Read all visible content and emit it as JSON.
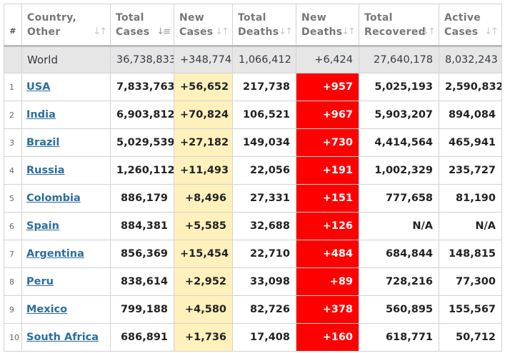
{
  "headers": {
    "index": "#",
    "country": [
      "Country,",
      "Other"
    ],
    "total_cases": [
      "Total",
      "Cases"
    ],
    "new_cases": [
      "New",
      "Cases"
    ],
    "total_deaths": [
      "Total",
      "Deaths"
    ],
    "new_deaths": [
      "New",
      "Deaths"
    ],
    "total_recovered": [
      "Total",
      "Recovered"
    ],
    "active_cases": [
      "Active",
      "Cases"
    ]
  },
  "sort_icons": {
    "country": "sort-icon",
    "total_cases": "sort-desc-icon",
    "other": "sort-icon"
  },
  "colors": {
    "new_cases_bg": "#fff1bc",
    "new_deaths_bg": "#ff0000",
    "link": "#2b6e9e",
    "world_row_bg": "#e6e6e6"
  },
  "world": {
    "country": "World",
    "total_cases": "36,738,833",
    "new_cases": "+348,774",
    "total_deaths": "1,066,412",
    "new_deaths": "+6,424",
    "total_recovered": "27,640,178",
    "active_cases": "8,032,243"
  },
  "rows": [
    {
      "idx": "1",
      "country": "USA",
      "total_cases": "7,833,763",
      "new_cases": "+56,652",
      "total_deaths": "217,738",
      "new_deaths": "+957",
      "total_recovered": "5,025,193",
      "active_cases": "2,590,832"
    },
    {
      "idx": "2",
      "country": "India",
      "total_cases": "6,903,812",
      "new_cases": "+70,824",
      "total_deaths": "106,521",
      "new_deaths": "+967",
      "total_recovered": "5,903,207",
      "active_cases": "894,084"
    },
    {
      "idx": "3",
      "country": "Brazil",
      "total_cases": "5,029,539",
      "new_cases": "+27,182",
      "total_deaths": "149,034",
      "new_deaths": "+730",
      "total_recovered": "4,414,564",
      "active_cases": "465,941"
    },
    {
      "idx": "4",
      "country": "Russia",
      "total_cases": "1,260,112",
      "new_cases": "+11,493",
      "total_deaths": "22,056",
      "new_deaths": "+191",
      "total_recovered": "1,002,329",
      "active_cases": "235,727"
    },
    {
      "idx": "5",
      "country": "Colombia",
      "total_cases": "886,179",
      "new_cases": "+8,496",
      "total_deaths": "27,331",
      "new_deaths": "+151",
      "total_recovered": "777,658",
      "active_cases": "81,190"
    },
    {
      "idx": "6",
      "country": "Spain",
      "total_cases": "884,381",
      "new_cases": "+5,585",
      "total_deaths": "32,688",
      "new_deaths": "+126",
      "total_recovered": "N/A",
      "active_cases": "N/A"
    },
    {
      "idx": "7",
      "country": "Argentina",
      "total_cases": "856,369",
      "new_cases": "+15,454",
      "total_deaths": "22,710",
      "new_deaths": "+484",
      "total_recovered": "684,844",
      "active_cases": "148,815"
    },
    {
      "idx": "8",
      "country": "Peru",
      "total_cases": "838,614",
      "new_cases": "+2,952",
      "total_deaths": "33,098",
      "new_deaths": "+89",
      "total_recovered": "728,216",
      "active_cases": "77,300"
    },
    {
      "idx": "9",
      "country": "Mexico",
      "total_cases": "799,188",
      "new_cases": "+4,580",
      "total_deaths": "82,726",
      "new_deaths": "+378",
      "total_recovered": "560,895",
      "active_cases": "155,567"
    },
    {
      "idx": "10",
      "country": "South Africa",
      "total_cases": "686,891",
      "new_cases": "+1,736",
      "total_deaths": "17,408",
      "new_deaths": "+160",
      "total_recovered": "618,771",
      "active_cases": "50,712"
    }
  ]
}
